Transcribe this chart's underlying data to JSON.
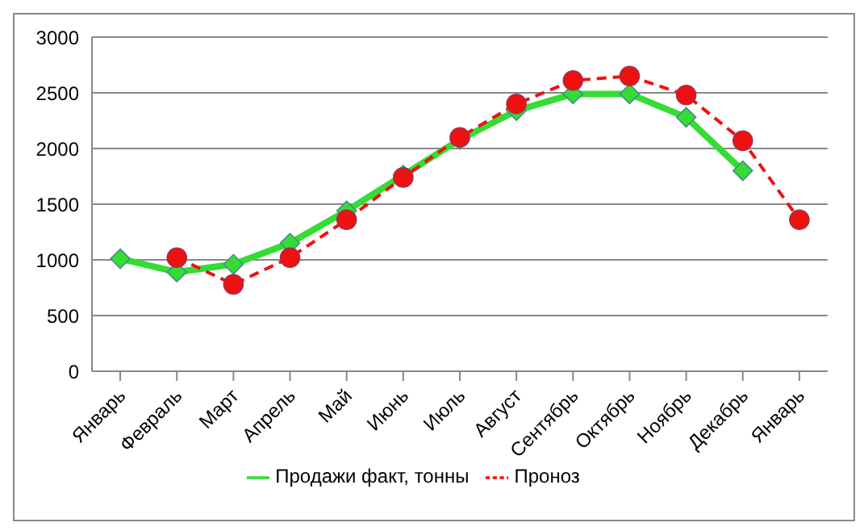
{
  "chart_data": {
    "type": "line",
    "categories": [
      "Январь",
      "Февраль",
      "Март",
      "Апрель",
      "Май",
      "Июнь",
      "Июль",
      "Август",
      "Сентябрь",
      "Октябрь",
      "Ноябрь",
      "Декабрь",
      "Январь"
    ],
    "series": [
      {
        "name": "Продажи факт, тонны",
        "color": "#33dd33",
        "marker": "diamond",
        "line_style": "solid",
        "values": [
          1010,
          890,
          960,
          1150,
          1440,
          1760,
          2080,
          2340,
          2490,
          2490,
          2280,
          1800,
          null
        ]
      },
      {
        "name": "Проноз",
        "color": "#ee1111",
        "marker": "circle",
        "line_style": "dashed",
        "values": [
          null,
          1020,
          780,
          1020,
          1360,
          1740,
          2100,
          2400,
          2610,
          2650,
          2480,
          2070,
          1360
        ]
      }
    ],
    "ylim": [
      0,
      3000
    ],
    "yticks": [
      0,
      500,
      1000,
      1500,
      2000,
      2500,
      3000
    ],
    "grid": "y",
    "legend": "bottom"
  }
}
